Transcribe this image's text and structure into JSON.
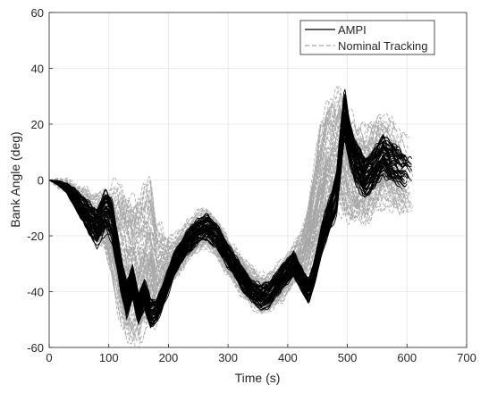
{
  "chart_data": {
    "type": "line",
    "title": "",
    "xlabel": "Time (s)",
    "ylabel": "Bank Angle (deg)",
    "xlim": [
      0,
      700
    ],
    "ylim": [
      -60,
      60
    ],
    "xticks": [
      0,
      100,
      200,
      300,
      400,
      500,
      600,
      700
    ],
    "yticks": [
      -60,
      -40,
      -20,
      0,
      20,
      40,
      60
    ],
    "grid": true,
    "legend_position": "top-right",
    "series": [
      {
        "name": "AMPI",
        "color": "#000000",
        "style": "solid",
        "x": [
          0,
          15,
          30,
          45,
          60,
          70,
          80,
          95,
          105,
          115,
          120,
          130,
          140,
          150,
          160,
          170,
          180,
          195,
          210,
          230,
          250,
          265,
          280,
          300,
          320,
          340,
          355,
          370,
          390,
          410,
          425,
          435,
          445,
          455,
          465,
          475,
          482,
          488,
          495,
          505,
          515,
          530,
          545,
          560,
          575,
          590,
          605,
          612
        ],
        "values": [
          0,
          -1,
          -3,
          -7,
          -12,
          -15,
          -17,
          -11,
          -14,
          -26,
          -33,
          -43,
          -37,
          -46,
          -41,
          -48,
          -47,
          -39,
          -30,
          -23,
          -18,
          -17,
          -20,
          -27,
          -34,
          -40,
          -42,
          -41,
          -35,
          -30,
          -36,
          -40,
          -33,
          -23,
          -16,
          -10,
          -5,
          8,
          24,
          12,
          6,
          1,
          4,
          9,
          6,
          3,
          2,
          0
        ],
        "band": [
          0,
          1,
          2,
          4,
          6,
          7,
          8,
          9,
          9,
          8,
          8,
          7,
          7,
          6,
          6,
          6,
          5,
          5,
          5,
          5,
          5,
          5,
          5,
          5,
          5,
          5,
          5,
          5,
          5,
          5,
          5,
          5,
          5,
          6,
          7,
          8,
          9,
          10,
          10,
          9,
          9,
          8,
          8,
          8,
          8,
          8,
          8,
          8
        ],
        "count": 60
      },
      {
        "name": "Nominal Tracking",
        "color": "#a6a6a6",
        "style": "dashed",
        "x": [
          0,
          15,
          30,
          45,
          60,
          70,
          80,
          95,
          105,
          115,
          120,
          130,
          140,
          150,
          160,
          170,
          180,
          195,
          210,
          230,
          250,
          265,
          280,
          300,
          320,
          340,
          355,
          370,
          390,
          410,
          425,
          435,
          445,
          455,
          465,
          475,
          482,
          488,
          495,
          505,
          515,
          530,
          545,
          560,
          575,
          590,
          605,
          612
        ],
        "values": [
          0,
          -1,
          -2,
          -6,
          -9,
          -12,
          -13,
          -14,
          -18,
          -22,
          -25,
          -28,
          -30,
          -30,
          -28,
          -25,
          -33,
          -30,
          -28,
          -22,
          -18,
          -17,
          -20,
          -27,
          -33,
          -38,
          -41,
          -40,
          -36,
          -30,
          -26,
          -20,
          -10,
          0,
          8,
          10,
          10,
          12,
          8,
          4,
          2,
          2,
          6,
          8,
          6,
          4,
          2,
          0
        ],
        "band": [
          0,
          2,
          3,
          5,
          7,
          8,
          9,
          12,
          18,
          26,
          29,
          31,
          31,
          31,
          30,
          29,
          22,
          12,
          9,
          8,
          8,
          8,
          8,
          8,
          8,
          8,
          8,
          8,
          8,
          8,
          10,
          14,
          20,
          25,
          25,
          25,
          25,
          25,
          23,
          22,
          20,
          19,
          19,
          18,
          18,
          18,
          18,
          18
        ],
        "count": 80
      }
    ]
  }
}
